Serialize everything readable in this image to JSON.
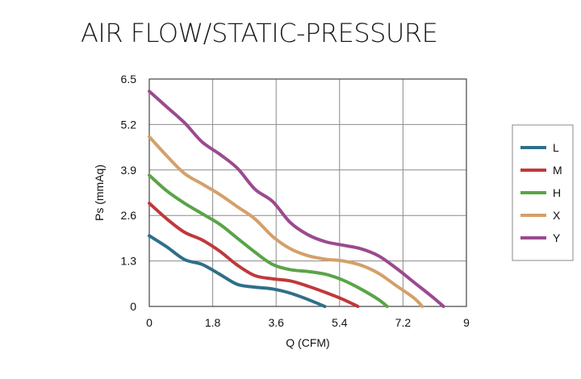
{
  "title": "AIR FLOW/STATIC-PRESSURE",
  "chart_data": {
    "type": "line",
    "title": "AIR FLOW/STATIC-PRESSURE",
    "xlabel": "Q (CFM)",
    "ylabel": "Ps (mmAq)",
    "xlim": [
      0,
      9
    ],
    "ylim": [
      0,
      6.5
    ],
    "x_ticks": [
      "0",
      "1.8",
      "3.6",
      "5.4",
      "7.2",
      "9"
    ],
    "y_ticks": [
      "0",
      "1.3",
      "2.6",
      "3.9",
      "5.2",
      "6.5"
    ],
    "grid": true,
    "legend_position": "right",
    "series": [
      {
        "name": "L",
        "color": "#2f6f8a",
        "points": [
          [
            0,
            2.02
          ],
          [
            0.5,
            1.7
          ],
          [
            1.0,
            1.34
          ],
          [
            1.5,
            1.2
          ],
          [
            2.0,
            0.92
          ],
          [
            2.5,
            0.63
          ],
          [
            3.0,
            0.55
          ],
          [
            3.5,
            0.5
          ],
          [
            4.0,
            0.38
          ],
          [
            4.5,
            0.2
          ],
          [
            4.98,
            0
          ]
        ]
      },
      {
        "name": "M",
        "color": "#c0393b",
        "points": [
          [
            0,
            2.95
          ],
          [
            0.5,
            2.5
          ],
          [
            1.0,
            2.12
          ],
          [
            1.5,
            1.9
          ],
          [
            2.0,
            1.58
          ],
          [
            2.5,
            1.18
          ],
          [
            3.0,
            0.88
          ],
          [
            3.5,
            0.79
          ],
          [
            4.0,
            0.73
          ],
          [
            4.5,
            0.58
          ],
          [
            5.0,
            0.4
          ],
          [
            5.5,
            0.2
          ],
          [
            5.92,
            0
          ]
        ]
      },
      {
        "name": "H",
        "color": "#5aa447",
        "points": [
          [
            0,
            3.75
          ],
          [
            0.5,
            3.3
          ],
          [
            1.0,
            2.95
          ],
          [
            1.5,
            2.65
          ],
          [
            2.0,
            2.35
          ],
          [
            2.5,
            1.95
          ],
          [
            3.0,
            1.55
          ],
          [
            3.5,
            1.2
          ],
          [
            4.0,
            1.05
          ],
          [
            4.5,
            1.0
          ],
          [
            5.0,
            0.92
          ],
          [
            5.5,
            0.75
          ],
          [
            6.0,
            0.5
          ],
          [
            6.5,
            0.2
          ],
          [
            6.75,
            0
          ]
        ]
      },
      {
        "name": "X",
        "color": "#d4a06a",
        "points": [
          [
            0,
            4.85
          ],
          [
            0.5,
            4.3
          ],
          [
            1.0,
            3.8
          ],
          [
            1.5,
            3.5
          ],
          [
            2.0,
            3.2
          ],
          [
            2.5,
            2.85
          ],
          [
            3.0,
            2.5
          ],
          [
            3.5,
            2.0
          ],
          [
            4.0,
            1.65
          ],
          [
            4.5,
            1.45
          ],
          [
            5.0,
            1.35
          ],
          [
            5.5,
            1.3
          ],
          [
            6.0,
            1.18
          ],
          [
            6.5,
            0.95
          ],
          [
            7.0,
            0.6
          ],
          [
            7.5,
            0.25
          ],
          [
            7.75,
            0
          ]
        ]
      },
      {
        "name": "Y",
        "color": "#9b4a8f",
        "points": [
          [
            0,
            6.15
          ],
          [
            0.5,
            5.7
          ],
          [
            1.0,
            5.25
          ],
          [
            1.5,
            4.7
          ],
          [
            2.0,
            4.35
          ],
          [
            2.5,
            3.95
          ],
          [
            3.0,
            3.35
          ],
          [
            3.5,
            3.0
          ],
          [
            4.0,
            2.4
          ],
          [
            4.5,
            2.05
          ],
          [
            5.0,
            1.85
          ],
          [
            5.5,
            1.75
          ],
          [
            6.0,
            1.65
          ],
          [
            6.5,
            1.45
          ],
          [
            7.0,
            1.1
          ],
          [
            7.5,
            0.7
          ],
          [
            8.0,
            0.3
          ],
          [
            8.35,
            0
          ]
        ]
      }
    ]
  }
}
